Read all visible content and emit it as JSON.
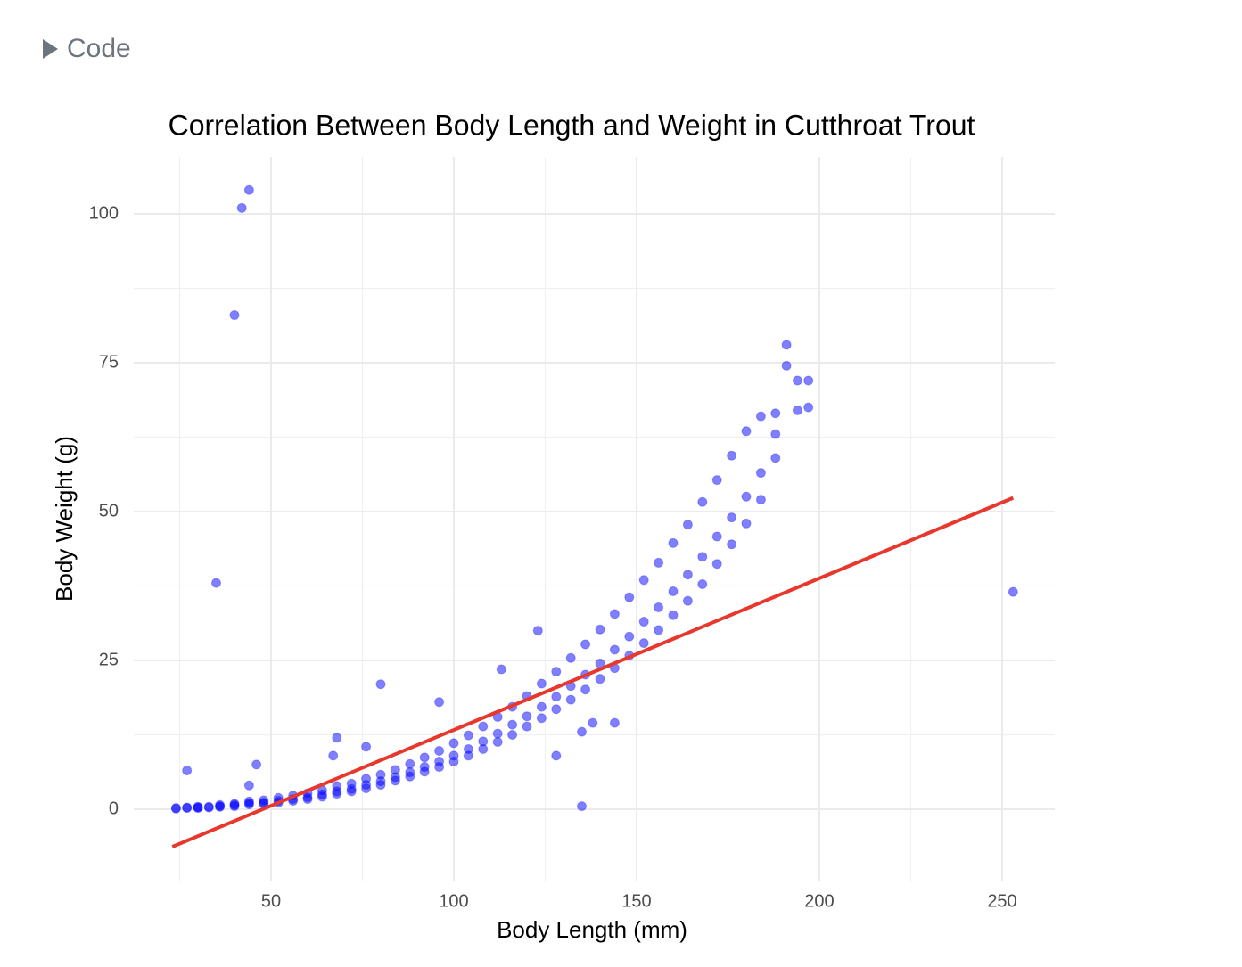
{
  "code_toggle": "Code",
  "chart_data": {
    "type": "scatter",
    "title": "Correlation Between Body Length and Weight in Cutthroat Trout",
    "x_label": "Body Length (mm)",
    "y_label": "Body Weight (g)",
    "color": "#0000ff",
    "xlim": [
      12.44,
      264.39
    ],
    "ylim": [
      -11.98,
      109.58
    ],
    "xticks": [
      50,
      100,
      150,
      200,
      250
    ],
    "yticks": [
      0,
      25,
      50,
      75,
      100
    ],
    "xminor": [
      25,
      75,
      125,
      175,
      225
    ],
    "yminor": [
      12.5,
      37.5,
      62.5,
      87.5
    ],
    "grid": true,
    "x": [
      24,
      24,
      27,
      27,
      30,
      30,
      30,
      33,
      33,
      36,
      36,
      36,
      40,
      40,
      40,
      44,
      44,
      44,
      48,
      48,
      48,
      52,
      52,
      52,
      56,
      56,
      56,
      60,
      60,
      60,
      64,
      64,
      64,
      68,
      68,
      68,
      72,
      72,
      72,
      76,
      76,
      76,
      80,
      80,
      80,
      84,
      84,
      84,
      88,
      88,
      88,
      92,
      92,
      92,
      96,
      96,
      96,
      100,
      100,
      100,
      104,
      104,
      104,
      108,
      108,
      108,
      112,
      112,
      112,
      116,
      116,
      116,
      120,
      120,
      120,
      124,
      124,
      124,
      128,
      128,
      128,
      132,
      132,
      132,
      136,
      136,
      136,
      140,
      140,
      140,
      144,
      144,
      144,
      148,
      148,
      148,
      152,
      152,
      152,
      156,
      156,
      156,
      160,
      160,
      160,
      164,
      164,
      164,
      168,
      168,
      168,
      172,
      172,
      172,
      176,
      176,
      176,
      180,
      180,
      180,
      184,
      184,
      184,
      188,
      188,
      188,
      191,
      191,
      194,
      194,
      197,
      197,
      44,
      42,
      40,
      35,
      253,
      135,
      27,
      46,
      80,
      68,
      76,
      96,
      135,
      138,
      128,
      144,
      123,
      113,
      67,
      44
    ],
    "y": [
      0.1,
      0.2,
      0.2,
      0.3,
      0.2,
      0.3,
      0.4,
      0.3,
      0.4,
      0.4,
      0.5,
      0.7,
      0.5,
      0.7,
      0.9,
      0.8,
      1.0,
      1.3,
      0.9,
      1.1,
      1.5,
      1.1,
      1.4,
      1.9,
      1.4,
      1.7,
      2.3,
      1.7,
      2.0,
      2.7,
      2.1,
      2.5,
      3.2,
      2.6,
      3.0,
      3.9,
      3.0,
      3.4,
      4.3,
      3.5,
      4.1,
      5.1,
      4.1,
      4.7,
      5.8,
      4.8,
      5.4,
      6.6,
      5.5,
      6.2,
      7.6,
      6.3,
      7.1,
      8.7,
      7.1,
      8.0,
      9.8,
      8.0,
      9.0,
      11.1,
      9.0,
      10.1,
      12.4,
      10.1,
      11.4,
      13.9,
      11.3,
      12.7,
      15.5,
      12.5,
      14.2,
      17.2,
      13.9,
      15.6,
      19.0,
      15.3,
      17.2,
      21.1,
      16.8,
      18.9,
      23.1,
      18.4,
      20.7,
      25.4,
      20.1,
      22.6,
      27.7,
      21.9,
      24.5,
      30.2,
      23.7,
      26.8,
      32.8,
      25.8,
      29.0,
      35.6,
      27.9,
      31.5,
      38.5,
      30.1,
      33.9,
      41.4,
      32.6,
      36.6,
      44.7,
      35.0,
      39.4,
      47.8,
      37.8,
      42.4,
      51.6,
      41.2,
      45.8,
      55.3,
      44.5,
      49.0,
      59.4,
      48.0,
      52.5,
      63.5,
      52.0,
      56.5,
      66.0,
      59.0,
      63.0,
      66.5,
      74.5,
      78.0,
      67,
      72,
      67.5,
      72,
      104,
      101,
      83,
      38,
      36.5,
      0.5,
      6.5,
      7.5,
      21,
      12,
      10.5,
      18,
      13,
      14.5,
      9,
      14.5,
      30,
      23.5,
      9,
      4
    ],
    "fit": {
      "x": [
        23,
        253
      ],
      "y": [
        -6.3,
        52.3
      ],
      "color": "#e8372c"
    }
  }
}
